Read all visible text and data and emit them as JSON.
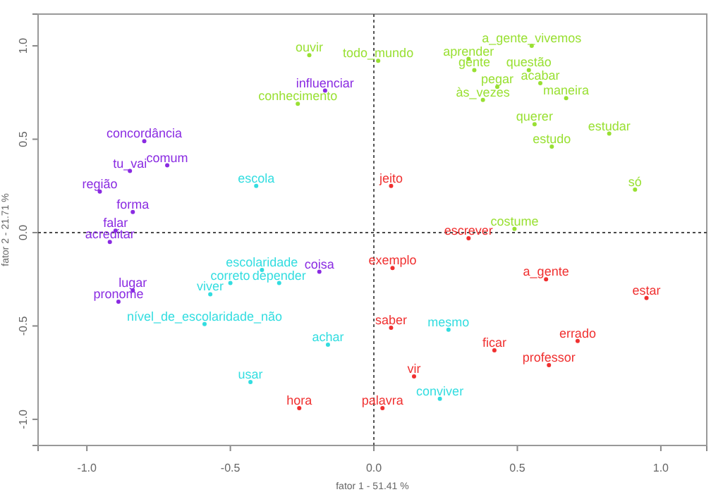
{
  "chart_data": {
    "type": "scatter",
    "xlabel": "fator 1 - 51.41 %",
    "ylabel": "fator 2 - 21.71 %",
    "marker": "circle",
    "grid": false,
    "xlim": [
      -1.17,
      1.16
    ],
    "ylim": [
      -1.14,
      1.17
    ],
    "xticks": [
      {
        "value": -1,
        "label": "-1.0"
      },
      {
        "value": -0.5,
        "label": "-0.5"
      },
      {
        "value": 0,
        "label": "0.0"
      },
      {
        "value": 0.5,
        "label": "0.5"
      },
      {
        "value": 1,
        "label": "1.0"
      }
    ],
    "yticks": [
      {
        "value": -1,
        "label": "-1.0"
      },
      {
        "value": -0.5,
        "label": "-0.5"
      },
      {
        "value": 0,
        "label": "0.0"
      },
      {
        "value": 0.5,
        "label": "0.5"
      },
      {
        "value": 1,
        "label": "1.0"
      }
    ],
    "ref_lines": [
      {
        "axis": "x",
        "value": 0,
        "color": "#555555",
        "line_style": "dotted"
      },
      {
        "axis": "y",
        "value": 0,
        "color": "#4a4a4a",
        "line_style": "dotted"
      }
    ],
    "series": [
      {
        "color": "#8a2be2",
        "x": [
          -0.17,
          -0.8,
          -0.85,
          -0.72,
          -0.955,
          -0.84,
          -0.9,
          -0.92,
          -0.19,
          -0.84,
          -0.89
        ],
        "values": [
          0.76,
          0.49,
          0.33,
          0.36,
          0.22,
          0.11,
          0.01,
          -0.05,
          -0.21,
          -0.31,
          -0.37
        ],
        "value_labels": [
          "influenciar",
          "concordância",
          "tu_vai",
          "comum",
          "região",
          "forma",
          "falar",
          "acreditar",
          "coisa",
          "lugar",
          "pronome"
        ]
      },
      {
        "color": "#99e033",
        "x": [
          -0.225,
          -0.265,
          0.015,
          0.55,
          0.33,
          0.35,
          0.54,
          0.43,
          0.58,
          0.38,
          0.67,
          0.56,
          0.82,
          0.62,
          0.91,
          0.49
        ],
        "values": [
          0.95,
          0.69,
          0.92,
          1.0,
          0.93,
          0.87,
          0.87,
          0.78,
          0.8,
          0.71,
          0.72,
          0.58,
          0.53,
          0.46,
          0.23,
          0.02
        ],
        "value_labels": [
          "ouvir",
          "conhecimento",
          "todo_mundo",
          "a_gente_vivemos",
          "aprender",
          "gente",
          "questão",
          "pegar",
          "acabar",
          "às_vezes",
          "maneira",
          "querer",
          "estudar",
          "estudo",
          "só",
          "costume"
        ]
      },
      {
        "color": "#33dde0",
        "x": [
          -0.41,
          -0.39,
          -0.5,
          -0.33,
          -0.57,
          -0.59,
          -0.16,
          -0.43,
          0.26,
          0.23
        ],
        "values": [
          0.25,
          -0.2,
          -0.27,
          -0.27,
          -0.33,
          -0.49,
          -0.6,
          -0.8,
          -0.52,
          -0.89
        ],
        "value_labels": [
          "escola",
          "escolaridade",
          "correto",
          "depender",
          "viver",
          "nível_de_escolaridade_não",
          "achar",
          "usar",
          "mesmo",
          "conviver"
        ]
      },
      {
        "color": "#f03030",
        "x": [
          0.06,
          0.33,
          0.065,
          0.6,
          0.95,
          0.06,
          0.42,
          0.71,
          0.61,
          0.14,
          0.03,
          -0.26
        ],
        "values": [
          0.25,
          -0.03,
          -0.19,
          -0.25,
          -0.35,
          -0.51,
          -0.63,
          -0.58,
          -0.71,
          -0.77,
          -0.94,
          -0.94
        ],
        "value_labels": [
          "jeito",
          "escrever",
          "exemplo",
          "a_gente",
          "estar",
          "saber",
          "ficar",
          "errado",
          "professor",
          "vir",
          "palavra",
          "hora"
        ]
      }
    ]
  }
}
